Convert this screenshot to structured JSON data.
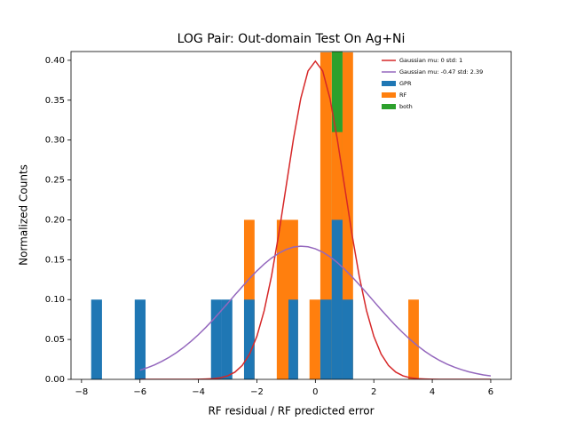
{
  "chart_data": {
    "type": "histogram",
    "title": "LOG Pair: Out-domain Test On Ag+Ni",
    "x_label": "RF residual / RF predicted error",
    "y_label": "Normalized Counts",
    "xlim": [
      -8.36,
      6.7
    ],
    "ylim": [
      0,
      0.411
    ],
    "xticks": [
      {
        "value": -8,
        "label": "−8"
      },
      {
        "value": -6,
        "label": "−6"
      },
      {
        "value": -4,
        "label": "−4"
      },
      {
        "value": -2,
        "label": "−2"
      },
      0,
      2,
      4,
      6
    ],
    "yticks": [
      {
        "value": 0,
        "label": "0.00"
      },
      {
        "value": 0.05,
        "label": "0.05"
      },
      {
        "value": 0.1,
        "label": "0.10"
      },
      {
        "value": 0.15,
        "label": "0.15"
      },
      {
        "value": 0.2,
        "label": "0.20"
      },
      {
        "value": 0.25,
        "label": "0.25"
      },
      {
        "value": 0.3,
        "label": "0.30"
      },
      {
        "value": 0.35,
        "label": "0.35"
      },
      {
        "value": 0.4,
        "label": "0.40"
      }
    ],
    "legend": "upper right",
    "series": [
      {
        "name": "Gaussian mu: 0 std: 1",
        "type": "line",
        "color": "#d62728",
        "x": [
          -6,
          -5.75,
          -5.5,
          -5.25,
          -5,
          -4.75,
          -4.5,
          -4.25,
          -4,
          -3.75,
          -3.5,
          -3.25,
          -3,
          -2.75,
          -2.5,
          -2.25,
          -2,
          -1.75,
          -1.5,
          -1.25,
          -1,
          -0.75,
          -0.5,
          -0.25,
          0,
          0.25,
          0.5,
          0.75,
          1,
          1.25,
          1.5,
          1.75,
          2,
          2.25,
          2.5,
          2.75,
          3,
          3.25,
          3.5,
          3.75,
          4,
          4.25,
          4.5,
          4.75,
          5,
          5.25,
          5.5,
          5.75,
          6
        ],
        "values": [
          0,
          0,
          0,
          0,
          0,
          0,
          0,
          0,
          0.0001,
          0.0004,
          0.0009,
          0.002,
          0.0044,
          0.0091,
          0.0175,
          0.0317,
          0.054,
          0.0863,
          0.1295,
          0.1826,
          0.242,
          0.3011,
          0.3521,
          0.3867,
          0.3989,
          0.3867,
          0.3521,
          0.3011,
          0.242,
          0.1826,
          0.1295,
          0.0863,
          0.054,
          0.0317,
          0.0175,
          0.0091,
          0.0044,
          0.002,
          0.0009,
          0.0004,
          0.0001,
          0,
          0,
          0,
          0,
          0,
          0,
          0,
          0
        ]
      },
      {
        "name": "Gaussian mu: -0.47 std: 2.39",
        "type": "line",
        "color": "#9467bd",
        "x": [
          -6,
          -5.75,
          -5.5,
          -5.25,
          -5,
          -4.75,
          -4.5,
          -4.25,
          -4,
          -3.75,
          -3.5,
          -3.25,
          -3,
          -2.75,
          -2.5,
          -2.25,
          -2,
          -1.75,
          -1.5,
          -1.25,
          -1,
          -0.75,
          -0.5,
          -0.25,
          0,
          0.25,
          0.5,
          0.75,
          1,
          1.25,
          1.5,
          1.75,
          2,
          2.25,
          2.5,
          2.75,
          3,
          3.25,
          3.5,
          3.75,
          4,
          4.25,
          4.5,
          4.75,
          5,
          5.25,
          5.5,
          5.75,
          6
        ],
        "values": [
          0.0115,
          0.0146,
          0.0182,
          0.0226,
          0.0277,
          0.0336,
          0.0403,
          0.0478,
          0.0561,
          0.0651,
          0.0747,
          0.0849,
          0.0953,
          0.1059,
          0.1163,
          0.1265,
          0.136,
          0.1446,
          0.1521,
          0.1582,
          0.1628,
          0.1658,
          0.1669,
          0.1662,
          0.1637,
          0.1595,
          0.1537,
          0.1465,
          0.1381,
          0.1288,
          0.1188,
          0.1084,
          0.0978,
          0.0873,
          0.0771,
          0.0673,
          0.0582,
          0.0497,
          0.042,
          0.0351,
          0.029,
          0.0237,
          0.0192,
          0.0154,
          0.0122,
          0.0095,
          0.0074,
          0.0056,
          0.0043
        ]
      },
      {
        "name": "GPR",
        "type": "hist",
        "color": "#1f77b4",
        "bins": [
          -7.67,
          -7.3,
          -6.18,
          -5.81,
          -3.57,
          -3.2,
          -2.84,
          -2.44,
          -2.08,
          -0.92,
          -0.59,
          0.17,
          0.56,
          0.93,
          1.29
        ],
        "values": [
          0.1,
          0,
          0.1,
          0,
          0.1,
          0.1,
          0,
          0.1,
          0,
          0.1,
          0,
          0.1,
          0.2,
          0.1
        ]
      },
      {
        "name": "RF",
        "type": "hist",
        "color": "#ff7f0e",
        "bins": [
          -2.44,
          -2.08,
          -1.32,
          -0.59,
          -0.2,
          0.17,
          0.56,
          0.93,
          1.29,
          3.18,
          3.54
        ],
        "values": [
          0.2,
          0,
          0.2,
          0,
          0.1,
          0.41,
          0.31,
          0.41,
          0,
          0.1
        ]
      },
      {
        "name": "both",
        "type": "hist",
        "color": "#2ca02c",
        "bins": [
          0.56,
          0.93
        ],
        "values": [
          0.43
        ]
      }
    ]
  }
}
